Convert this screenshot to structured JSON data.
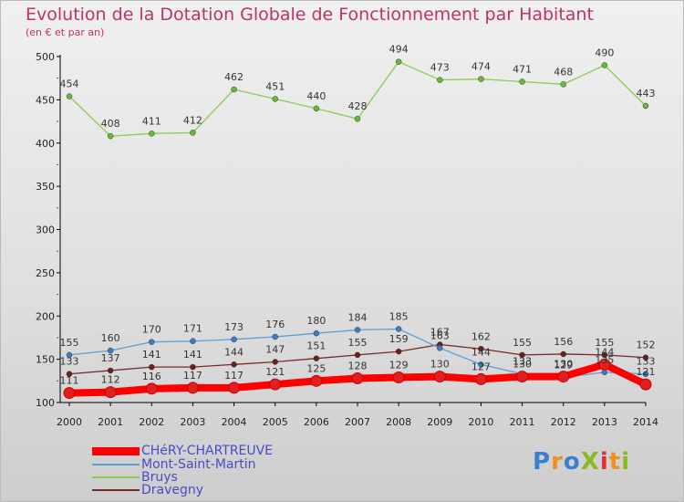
{
  "title": "Evolution de la Dotation Globale de Fonctionnement par Habitant",
  "subtitle": "(en € et par an)",
  "logo": "ProXiti",
  "chart_data": {
    "type": "line",
    "x": [
      "2000",
      "2001",
      "2002",
      "2003",
      "2004",
      "2005",
      "2006",
      "2007",
      "2008",
      "2009",
      "2010",
      "2011",
      "2012",
      "2013",
      "2014"
    ],
    "ylim": [
      100,
      500
    ],
    "yticks": [
      100,
      150,
      200,
      250,
      300,
      350,
      400,
      450,
      500
    ],
    "ytick_labels": [
      "100",
      "150",
      "200",
      "250",
      "300",
      "350",
      "400",
      "450",
      "500"
    ],
    "grid": false,
    "legend_position": "bottom-left",
    "series": [
      {
        "name": "CHéRY-CHARTREUVE",
        "color": "#ff0000",
        "point_color": "#e02020",
        "values": [
          111,
          112,
          116,
          117,
          117,
          121,
          125,
          128,
          129,
          130,
          127,
          130,
          130,
          144,
          121
        ],
        "labels": [
          "111",
          "112",
          "116",
          "117",
          "117",
          "121",
          "125",
          "128",
          "129",
          "130",
          "127",
          "130",
          "130",
          "144",
          "121"
        ]
      },
      {
        "name": "Mont-Saint-Martin",
        "color": "#5a9fd4",
        "point_color": "#3a7fc0",
        "values": [
          155,
          160,
          170,
          171,
          173,
          176,
          180,
          184,
          185,
          163,
          144,
          133,
          129,
          135,
          133
        ],
        "labels": [
          "155",
          "160",
          "170",
          "171",
          "173",
          "176",
          "180",
          "184",
          "185",
          "163",
          "144",
          "133",
          "129",
          "135",
          "133"
        ]
      },
      {
        "name": "Bruys",
        "color": "#88cc55",
        "point_color": "#66bb33",
        "values": [
          454,
          408,
          411,
          412,
          462,
          451,
          440,
          428,
          494,
          473,
          474,
          471,
          468,
          490,
          443
        ],
        "labels": [
          "454",
          "408",
          "411",
          "412",
          "462",
          "451",
          "440",
          "428",
          "494",
          "473",
          "474",
          "471",
          "468",
          "490",
          "443"
        ]
      },
      {
        "name": "Dravegny",
        "color": "#7a2a2a",
        "point_color": "#6b1f1f",
        "values": [
          133,
          137,
          141,
          141,
          144,
          147,
          151,
          155,
          159,
          167,
          162,
          155,
          156,
          155,
          152
        ],
        "labels": [
          "133",
          "137",
          "141",
          "141",
          "144",
          "147",
          "151",
          "155",
          "159",
          "167",
          "162",
          "155",
          "156",
          "155",
          "152"
        ]
      }
    ]
  }
}
